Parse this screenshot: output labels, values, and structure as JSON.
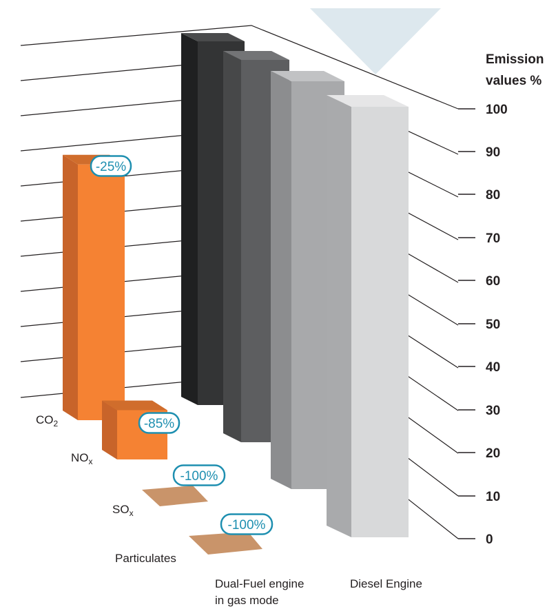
{
  "chart_data": {
    "type": "bar",
    "title": "",
    "ylabel": [
      "Emission",
      "values %"
    ],
    "ylim": [
      0,
      100
    ],
    "yticks": [
      "100",
      "90",
      "80",
      "70",
      "60",
      "50",
      "40",
      "30",
      "20",
      "10",
      "0"
    ],
    "emissions": [
      "CO2",
      "NOx",
      "SOx",
      "Particulates"
    ],
    "engines": [
      {
        "name": "Dual-Fuel engine in gas mode",
        "label_lines": [
          "Dual-Fuel engine",
          "in gas mode"
        ]
      },
      {
        "name": "Diesel Engine",
        "label_lines": [
          "Diesel Engine"
        ]
      }
    ],
    "series": [
      {
        "name": "Dual-Fuel engine in gas mode",
        "values": [
          75,
          15,
          0,
          0
        ],
        "reductions": [
          "-25%",
          "-85%",
          "-100%",
          "-100%"
        ]
      },
      {
        "name": "Diesel Engine",
        "values": [
          100,
          100,
          100,
          100
        ]
      }
    ],
    "colors": {
      "df_front": "#f58233",
      "df_side": "#c8642a",
      "df_top": "#d06d2c",
      "zero_plate": "#c9946a",
      "diesel_fronts": [
        "#333435",
        "#5d5e60",
        "#a8a9ab",
        "#d8d9da"
      ],
      "diesel_sides": [
        "#1f2021",
        "#474849",
        "#8c8d8f",
        "#a9aaac"
      ],
      "diesel_tops": [
        "#4a4b4c",
        "#737476",
        "#c1c2c4",
        "#e6e6e7"
      ],
      "badge": "#1e8fb0",
      "watermark": "#dde8ee"
    }
  }
}
